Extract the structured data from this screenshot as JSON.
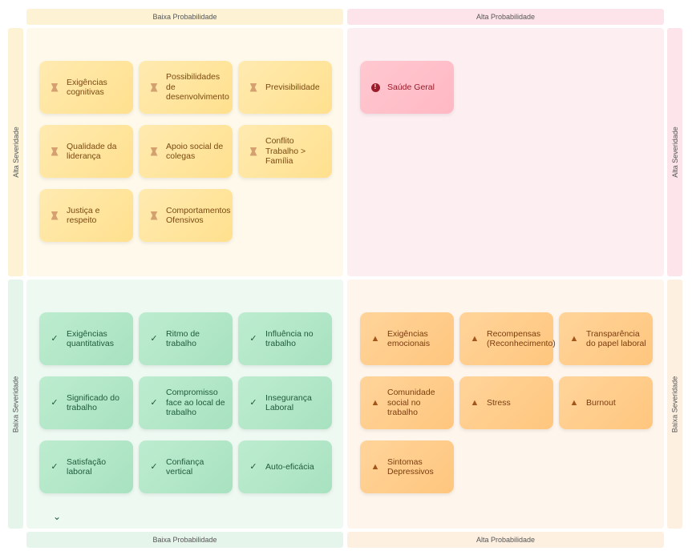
{
  "axes": {
    "low_prob": "Baixa Probabilidade",
    "high_prob": "Alta Probabilidade",
    "high_sev": "Alta Severidade",
    "low_sev": "Baixa Severidade"
  },
  "colors": {
    "yellow": "#ffe8a0",
    "pink": "#ffc0c8",
    "green": "#b3e8c8",
    "orange": "#ffcc8a"
  },
  "quadrants": {
    "high_sev_low_prob": {
      "icon": "hourglass-icon",
      "items": [
        "Exigências cognitivas",
        "Possibilidades de desenvolvimento",
        "Previsibilidade",
        "Qualidade da liderança",
        "Apoio social de colegas",
        "Conflito Trabalho > Família",
        "Justiça e respeito",
        "Comportamentos Ofensivos"
      ]
    },
    "high_sev_high_prob": {
      "icon": "alert-circle-icon",
      "items": [
        "Saúde Geral"
      ]
    },
    "low_sev_low_prob": {
      "icon": "check-icon",
      "items": [
        "Exigências quantitativas",
        "Ritmo de trabalho",
        "Influência no trabalho",
        "Significado do trabalho",
        "Compromisso face ao local de trabalho",
        "Insegurança Laboral",
        "Satisfação laboral",
        "Confiança vertical",
        "Auto-eficácia"
      ]
    },
    "low_sev_high_prob": {
      "icon": "warning-icon",
      "items": [
        "Exigências emocionais",
        "Recompensas (Reconhecimento)",
        "Transparência do papel laboral",
        "Comunidade social no trabalho",
        "Stress",
        "Burnout",
        "Sintomas Depressivos"
      ]
    }
  }
}
